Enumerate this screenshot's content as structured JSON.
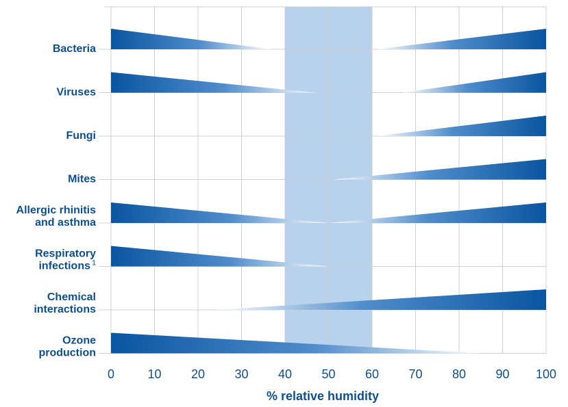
{
  "chart_data": {
    "type": "bar",
    "title": "",
    "xlabel": "% relative humidity",
    "ylabel": "",
    "xlim": [
      0,
      100
    ],
    "x_ticks": [
      0,
      10,
      20,
      30,
      40,
      50,
      60,
      70,
      80,
      90,
      100
    ],
    "grid": true,
    "optimal_zone": {
      "from": 40,
      "to": 60
    },
    "colors": {
      "wedge_dark": "#0a55a0",
      "wedge_light": "#ffffff",
      "label": "#0e4f8e",
      "zone": "#b8d1ec",
      "grid": "#cfcfcf"
    },
    "categories": [
      {
        "label": [
          "Bacteria"
        ],
        "wedges": [
          {
            "direction": "decreasing",
            "start": 0,
            "end": 37
          },
          {
            "direction": "increasing",
            "start": 61,
            "end": 100
          }
        ]
      },
      {
        "label": [
          "Viruses"
        ],
        "wedges": [
          {
            "direction": "decreasing",
            "start": 0,
            "end": 47
          },
          {
            "direction": "increasing",
            "start": 67,
            "end": 100
          }
        ]
      },
      {
        "label": [
          "Fungi"
        ],
        "wedges": [
          {
            "direction": "increasing",
            "start": 61,
            "end": 100
          }
        ]
      },
      {
        "label": [
          "Mites"
        ],
        "wedges": [
          {
            "direction": "increasing",
            "start": 51,
            "end": 100
          }
        ]
      },
      {
        "label": [
          "Allergic rhinitis",
          "and asthma"
        ],
        "wedges": [
          {
            "direction": "decreasing",
            "start": 0,
            "end": 50
          },
          {
            "direction": "increasing",
            "start": 50,
            "end": 100
          }
        ]
      },
      {
        "label": [
          "Respiratory",
          "infections"
        ],
        "footnote": "1",
        "wedges": [
          {
            "direction": "decreasing",
            "start": 0,
            "end": 50
          }
        ]
      },
      {
        "label": [
          "Chemical",
          "interactions"
        ],
        "wedges": [
          {
            "direction": "increasing",
            "start": 24,
            "end": 100
          }
        ]
      },
      {
        "label": [
          "Ozone",
          "production"
        ],
        "wedges": [
          {
            "direction": "decreasing",
            "start": 0,
            "end": 85
          }
        ]
      }
    ]
  }
}
